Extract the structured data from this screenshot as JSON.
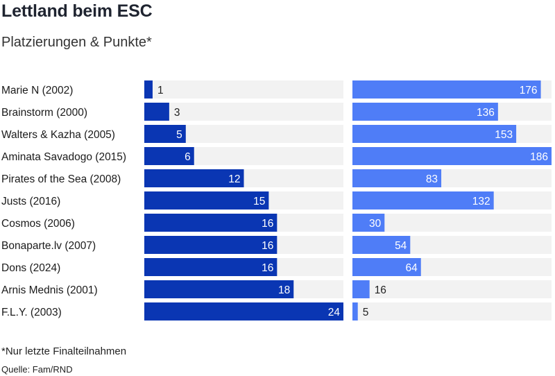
{
  "header": {
    "title": "Lettland beim ESC",
    "subtitle": "Platzierungen & Punkte*"
  },
  "footer": {
    "note": "*Nur letzte Finalteilnahmen",
    "source": "Quelle: Fam/RND"
  },
  "colors": {
    "placement_bar": "#0a36b3",
    "points_bar": "#4f7df7",
    "track": "#f2f2f2",
    "label_inside": "#ffffff",
    "label_outside": "#222222"
  },
  "chart_data": {
    "type": "bar",
    "orientation": "horizontal",
    "categories": [
      "Marie N (2002)",
      "Brainstorm (2000)",
      "Walters & Kazha (2005)",
      "Aminata Savadogo (2015)",
      "Pirates of the Sea (2008)",
      "Justs (2016)",
      "Cosmos (2006)",
      "Bonaparte.lv (2007)",
      "Dons (2024)",
      "Arnis Mednis (2001)",
      "F.L.Y. (2003)"
    ],
    "series": [
      {
        "values": [
          1,
          3,
          5,
          6,
          12,
          15,
          16,
          16,
          16,
          18,
          24
        ],
        "max": 24
      },
      {
        "values": [
          176,
          136,
          153,
          186,
          83,
          132,
          30,
          54,
          64,
          16,
          5
        ],
        "max": 186
      }
    ],
    "grid": false,
    "legend": "none"
  }
}
